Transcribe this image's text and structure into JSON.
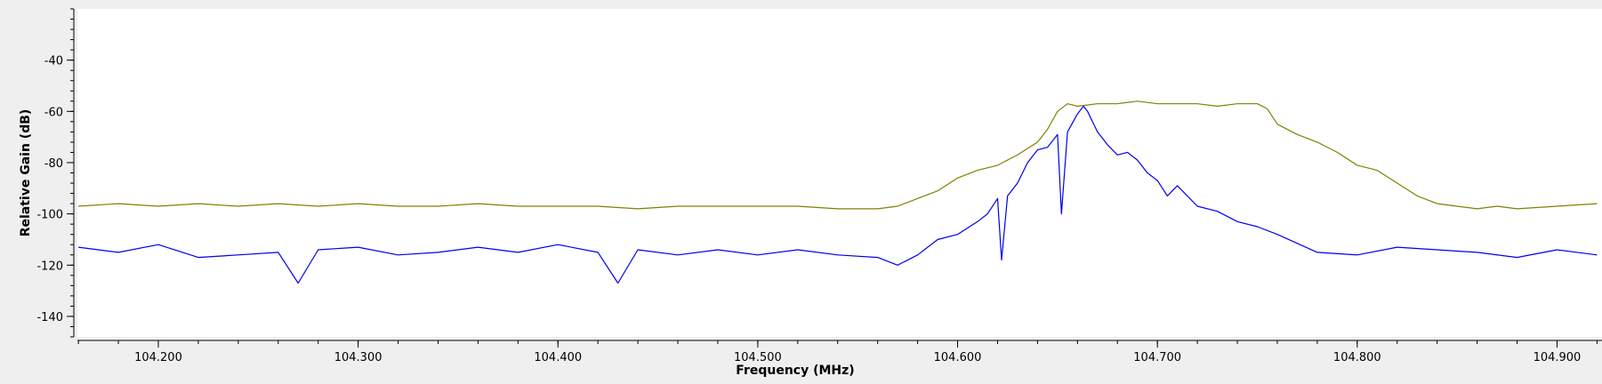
{
  "chart_data": {
    "type": "line",
    "title": "",
    "xlabel": "Frequency (MHz)",
    "ylabel": "Relative Gain (dB)",
    "xlim": [
      104.1595,
      104.9225
    ],
    "ylim": [
      -148,
      -20
    ],
    "xticks": [
      104.2,
      104.3,
      104.4,
      104.5,
      104.6,
      104.7,
      104.8,
      104.9
    ],
    "xtick_labels": [
      "104.200",
      "104.300",
      "104.400",
      "104.500",
      "104.600",
      "104.700",
      "104.800",
      "104.900"
    ],
    "yticks": [
      -40,
      -60,
      -80,
      -100,
      -120,
      -140
    ],
    "ytick_labels": [
      "-40",
      "-60",
      "-80",
      "-100",
      "-120",
      "-140"
    ],
    "grid": false,
    "series": [
      {
        "color": "#808000",
        "x": [
          104.16,
          104.18,
          104.2,
          104.22,
          104.24,
          104.26,
          104.28,
          104.3,
          104.32,
          104.34,
          104.36,
          104.38,
          104.4,
          104.42,
          104.44,
          104.46,
          104.48,
          104.5,
          104.52,
          104.54,
          104.56,
          104.57,
          104.58,
          104.59,
          104.6,
          104.61,
          104.62,
          104.63,
          104.64,
          104.645,
          104.65,
          104.655,
          104.66,
          104.67,
          104.68,
          104.69,
          104.7,
          104.71,
          104.72,
          104.73,
          104.74,
          104.75,
          104.755,
          104.76,
          104.77,
          104.78,
          104.79,
          104.8,
          104.81,
          104.82,
          104.83,
          104.84,
          104.85,
          104.86,
          104.87,
          104.88,
          104.9,
          104.92
        ],
        "y": [
          -97,
          -96,
          -97,
          -96,
          -97,
          -96,
          -97,
          -96,
          -97,
          -97,
          -96,
          -97,
          -97,
          -97,
          -98,
          -97,
          -97,
          -97,
          -97,
          -98,
          -98,
          -97,
          -94,
          -91,
          -86,
          -83,
          -81,
          -77,
          -72,
          -67,
          -60,
          -57,
          -58,
          -57,
          -57,
          -56,
          -57,
          -57,
          -57,
          -58,
          -57,
          -57,
          -59,
          -65,
          -69,
          -72,
          -76,
          -81,
          -83,
          -88,
          -93,
          -96,
          -97,
          -98,
          -97,
          -98,
          -97,
          -96
        ]
      },
      {
        "color": "#0000ee",
        "x": [
          104.16,
          104.18,
          104.2,
          104.22,
          104.24,
          104.26,
          104.27,
          104.28,
          104.3,
          104.32,
          104.34,
          104.36,
          104.38,
          104.4,
          104.42,
          104.43,
          104.44,
          104.46,
          104.48,
          104.5,
          104.52,
          104.54,
          104.56,
          104.57,
          104.58,
          104.59,
          104.6,
          104.61,
          104.615,
          104.62,
          104.622,
          104.625,
          104.63,
          104.635,
          104.64,
          104.645,
          104.65,
          104.652,
          104.655,
          104.66,
          104.663,
          104.665,
          104.67,
          104.675,
          104.68,
          104.685,
          104.69,
          104.695,
          104.7,
          104.705,
          104.71,
          104.72,
          104.73,
          104.74,
          104.75,
          104.76,
          104.78,
          104.8,
          104.82,
          104.84,
          104.86,
          104.88,
          104.9,
          104.92
        ],
        "y": [
          -113,
          -115,
          -112,
          -117,
          -116,
          -115,
          -127,
          -114,
          -113,
          -116,
          -115,
          -113,
          -115,
          -112,
          -115,
          -127,
          -114,
          -116,
          -114,
          -116,
          -114,
          -116,
          -117,
          -120,
          -116,
          -110,
          -108,
          -103,
          -100,
          -94,
          -118,
          -93,
          -88,
          -80,
          -75,
          -74,
          -69,
          -100,
          -68,
          -61,
          -58,
          -60,
          -68,
          -73,
          -77,
          -76,
          -79,
          -84,
          -87,
          -93,
          -89,
          -97,
          -99,
          -103,
          -105,
          -108,
          -115,
          -116,
          -113,
          -114,
          -115,
          -117,
          -114,
          -116
        ]
      }
    ]
  }
}
